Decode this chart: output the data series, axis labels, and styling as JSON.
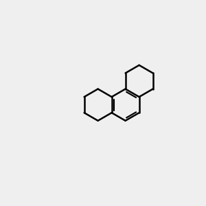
{
  "background_color": "#f0f0f0",
  "bond_color": "#000000",
  "oxygen_color": "#ff0000",
  "line_width": 1.8,
  "figsize": [
    3.0,
    3.0
  ],
  "dpi": 100
}
